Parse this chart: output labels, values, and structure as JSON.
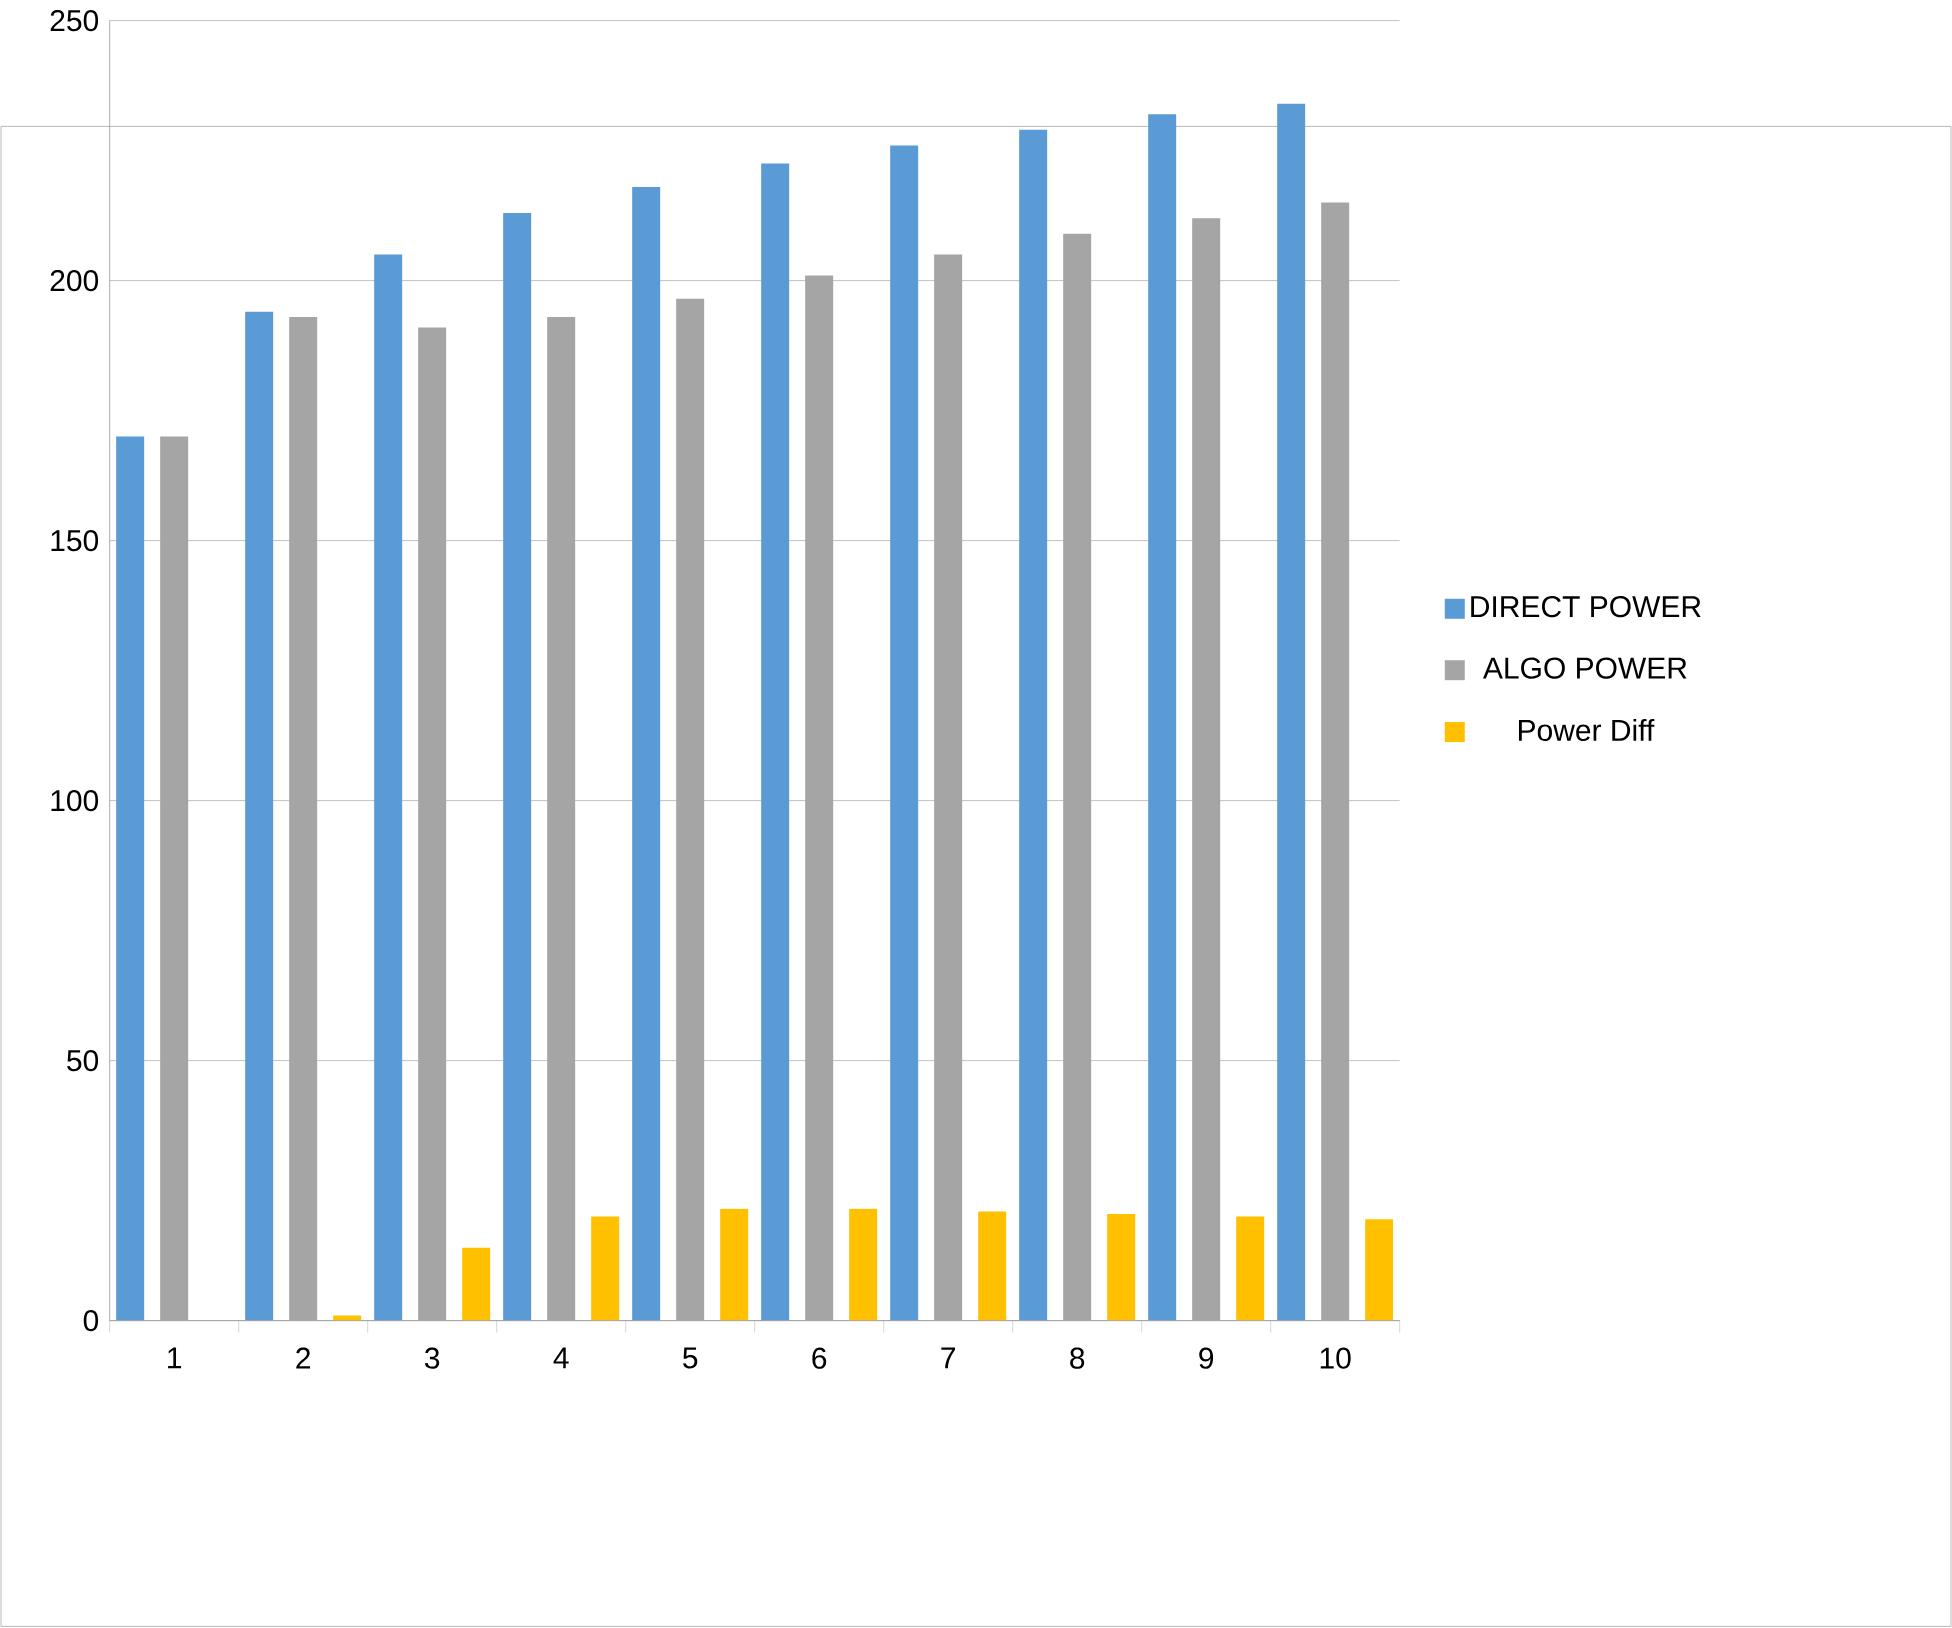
{
  "chart_data": {
    "type": "bar",
    "categories": [
      "1",
      "2",
      "3",
      "4",
      "5",
      "6",
      "7",
      "8",
      "9",
      "10"
    ],
    "series": [
      {
        "name": "DIRECT POWER",
        "color": "#5b9bd5",
        "values": [
          170,
          194,
          205,
          213,
          218,
          222.5,
          226,
          229,
          232,
          234
        ]
      },
      {
        "name": "ALGO POWER",
        "color": "#a5a5a5",
        "values": [
          170,
          193,
          191,
          193,
          196.5,
          201,
          205,
          209,
          212,
          215
        ]
      },
      {
        "name": "Power Diff",
        "color": "#ffc000",
        "values": [
          0,
          1,
          14,
          20,
          21.5,
          21.5,
          21,
          20.5,
          20,
          19.5
        ]
      }
    ],
    "ylim": [
      0,
      250
    ],
    "yticks": [
      0,
      50,
      100,
      150,
      200,
      250
    ],
    "grid": "y",
    "legend": "right"
  }
}
